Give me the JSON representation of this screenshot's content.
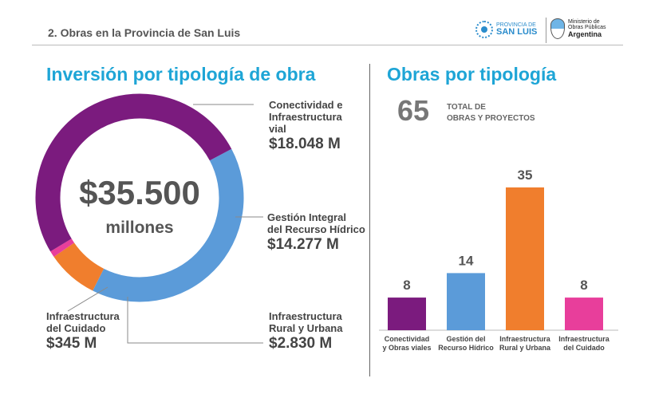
{
  "header": {
    "title": "2. Obras en la Provincia de San Luis",
    "logo_provincia_line1": "PROVINCIA DE",
    "logo_provincia_line2": "SAN LUIS",
    "logo_ministerio_line1": "Ministerio de",
    "logo_ministerio_line2": "Obras Públicas",
    "logo_ministerio_line3": "Argentina"
  },
  "left_panel": {
    "title": "Inversión por tipología de obra",
    "center_amount": "$35.500",
    "center_unit": "millones"
  },
  "right_panel": {
    "title": "Obras por tipología",
    "total_value": "65",
    "total_label": "TOTAL DE\nOBRAS Y PROYECTOS"
  },
  "chart_data": [
    {
      "type": "pie",
      "variant": "donut",
      "slices": [
        {
          "label": "Conectividad e\nInfraestructura\nvial",
          "value": 18.048,
          "value_label": "$18.048 M",
          "color": "#7b1b7e"
        },
        {
          "label": "Gestión Integral\ndel Recurso Hídrico",
          "value": 14.277,
          "value_label": "$14.277 M",
          "color": "#5b9bd9"
        },
        {
          "label": "Infraestructura\nRural y Urbana",
          "value": 2.83,
          "value_label": "$2.830 M",
          "color": "#f07e2d"
        },
        {
          "label": "Infraestructura\ndel Cuidado",
          "value": 0.345,
          "value_label": "$345 M",
          "color": "#e83e9b"
        }
      ]
    },
    {
      "type": "bar",
      "categories": [
        "Conectividad\ny Obras viales",
        "Gestión del\nRecurso Hídrico",
        "Infraestructura\nRural y Urbana",
        "Infraestructura\ndel Cuidado"
      ],
      "values": [
        8,
        14,
        35,
        8
      ],
      "colors": [
        "#7b1b7e",
        "#5b9bd9",
        "#f07e2d",
        "#e83e9b"
      ],
      "ylim": [
        0,
        35
      ]
    }
  ]
}
